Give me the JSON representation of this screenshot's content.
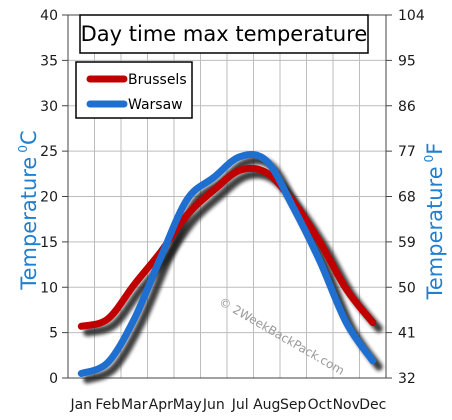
{
  "chart_data": {
    "type": "line",
    "title": "Day time max temperature",
    "categories": [
      "Jan",
      "Feb",
      "Mar",
      "Apr",
      "May",
      "Jun",
      "Jul",
      "Aug",
      "Sep",
      "Oct",
      "Nov",
      "Dec"
    ],
    "series": [
      {
        "name": "Brussels",
        "color": "#c00000",
        "values": [
          5.7,
          6.5,
          10.3,
          13.9,
          18.0,
          20.7,
          22.9,
          22.6,
          19.4,
          15.0,
          9.8,
          6.1
        ]
      },
      {
        "name": "Warsaw",
        "color": "#1f6fd0",
        "values": [
          0.5,
          1.7,
          6.5,
          13.3,
          19.7,
          22.1,
          24.4,
          23.9,
          18.8,
          12.9,
          6.1,
          1.9
        ]
      }
    ],
    "ylabel_left": "Temperature",
    "ylabel_left_unit": "C",
    "ylabel_right": "Temperature",
    "ylabel_right_unit": "F",
    "unit_prefix": "0",
    "ylim": [
      0,
      40
    ],
    "yticks_left": [
      "0",
      "5",
      "10",
      "15",
      "20",
      "25",
      "30",
      "35",
      "40"
    ],
    "yticks_right": [
      "32",
      "41",
      "50",
      "59",
      "68",
      "77",
      "86",
      "95",
      "104"
    ],
    "grid": true,
    "legend_position": "top-left",
    "watermark": "© 2WeekBackPack.com"
  }
}
